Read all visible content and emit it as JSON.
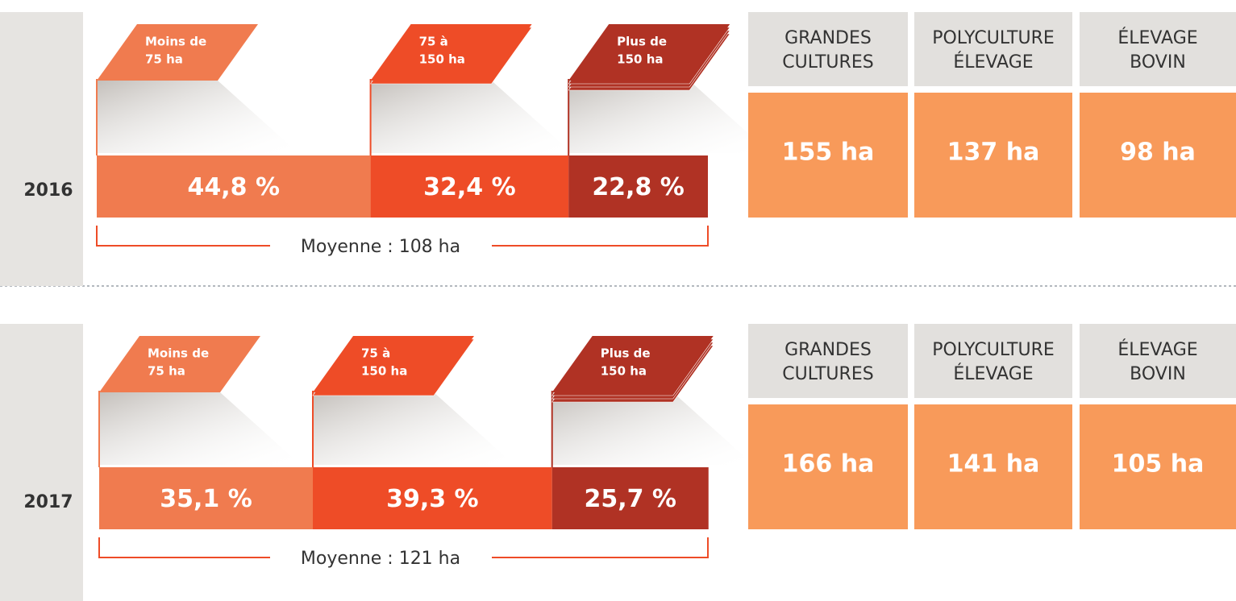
{
  "rows": [
    {
      "year": "2016",
      "segments": [
        {
          "label": [
            "Moins de",
            "75 ha"
          ],
          "value": 44.8,
          "value_label": "44,8 %",
          "color": "#f07b4f"
        },
        {
          "label": [
            "75 à",
            "150 ha"
          ],
          "value": 32.4,
          "value_label": "32,4 %",
          "color": "#ee4c27"
        },
        {
          "label": [
            "Plus de",
            "150 ha"
          ],
          "value": 22.8,
          "value_label": "22,8 %",
          "color": "#b03224"
        }
      ],
      "average": "Moyenne : 108 ha",
      "categories": [
        {
          "header": [
            "GRANDES",
            "CULTURES"
          ],
          "value": "155 ha"
        },
        {
          "header": [
            "POLYCULTURE",
            "ÉLEVAGE"
          ],
          "value": "137 ha"
        },
        {
          "header": [
            "ÉLEVAGE",
            "BOVIN"
          ],
          "value": "98 ha"
        }
      ]
    },
    {
      "year": "2017",
      "segments": [
        {
          "label": [
            "Moins de",
            "75 ha"
          ],
          "value": 35.1,
          "value_label": "35,1 %",
          "color": "#f07b4f"
        },
        {
          "label": [
            "75 à",
            "150 ha"
          ],
          "value": 39.3,
          "value_label": "39,3 %",
          "color": "#ee4c27"
        },
        {
          "label": [
            "Plus de",
            "150 ha"
          ],
          "value": 25.7,
          "value_label": "25,7 %",
          "color": "#b03224"
        }
      ],
      "average": "Moyenne : 121 ha",
      "categories": [
        {
          "header": [
            "GRANDES",
            "CULTURES"
          ],
          "value": "166 ha"
        },
        {
          "header": [
            "POLYCULTURE",
            "ÉLEVAGE"
          ],
          "value": "141 ha"
        },
        {
          "header": [
            "ÉLEVAGE",
            "BOVIN"
          ],
          "value": "105 ha"
        }
      ]
    }
  ]
}
